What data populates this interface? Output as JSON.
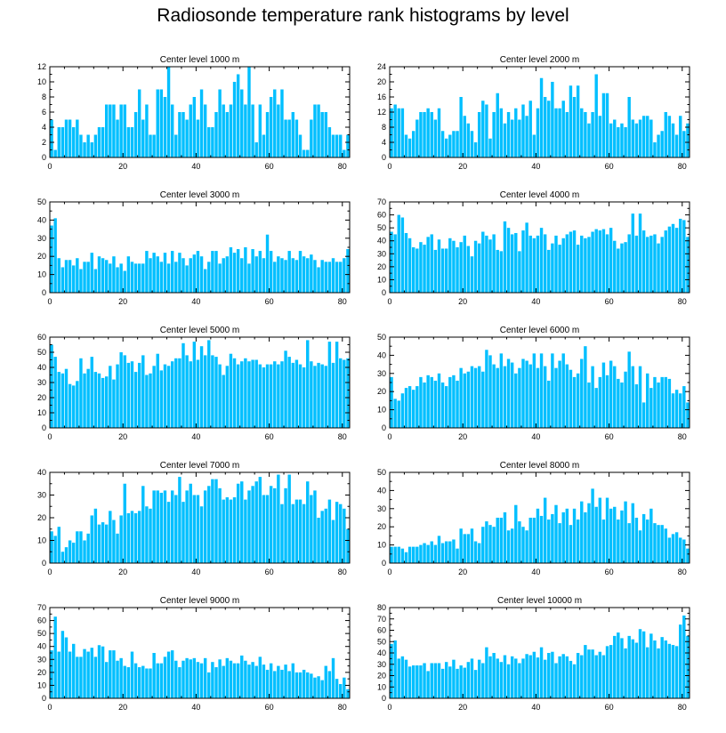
{
  "title": "Radiosonde temperature rank histograms by level",
  "bar_color": "#00bfff",
  "chart_data": [
    {
      "type": "bar",
      "title": "Center level 1000 m",
      "xlim": [
        0,
        82
      ],
      "ylim": [
        0,
        12
      ],
      "xticks": [
        0,
        20,
        40,
        60,
        80
      ],
      "yticks": [
        0,
        2,
        4,
        6,
        8,
        10,
        12
      ],
      "values": [
        5,
        1,
        4,
        4,
        5,
        5,
        4,
        5,
        3,
        2,
        3,
        2,
        3,
        4,
        4,
        7,
        7,
        7,
        5,
        7,
        7,
        4,
        4,
        6,
        9,
        5,
        7,
        3,
        3,
        9,
        9,
        8,
        12,
        7,
        3,
        6,
        6,
        5,
        7,
        8,
        5,
        9,
        7,
        4,
        4,
        6,
        9,
        7,
        6,
        7,
        10,
        11,
        9,
        7,
        12,
        7,
        2,
        7,
        3,
        6,
        8,
        9,
        7,
        9,
        5,
        5,
        6,
        5,
        3,
        1,
        1,
        5,
        7,
        7,
        6,
        6,
        4,
        3,
        3,
        3,
        1,
        3
      ]
    },
    {
      "type": "bar",
      "title": "Center level 2000 m",
      "xlim": [
        0,
        82
      ],
      "ylim": [
        0,
        24
      ],
      "xticks": [
        0,
        20,
        40,
        60,
        80
      ],
      "yticks": [
        0,
        4,
        8,
        12,
        16,
        20,
        24
      ],
      "values": [
        13,
        14,
        13,
        13,
        6,
        5,
        7,
        10,
        12,
        12,
        13,
        12,
        10,
        13,
        7,
        5,
        6,
        7,
        7,
        16,
        11,
        9,
        7,
        4,
        12,
        15,
        14,
        5,
        12,
        17,
        13,
        9,
        12,
        10,
        13,
        10,
        14,
        11,
        15,
        6,
        13,
        21,
        16,
        15,
        20,
        13,
        13,
        15,
        12,
        19,
        16,
        19,
        13,
        12,
        9,
        12,
        22,
        11,
        17,
        17,
        9,
        10,
        8,
        9,
        8,
        16,
        10,
        9,
        10,
        11,
        11,
        10,
        4,
        6,
        7,
        12,
        11,
        9,
        6,
        11,
        7,
        9
      ]
    },
    {
      "type": "bar",
      "title": "Center level 3000 m",
      "xlim": [
        0,
        82
      ],
      "ylim": [
        0,
        50
      ],
      "xticks": [
        0,
        20,
        40,
        60,
        80
      ],
      "yticks": [
        0,
        10,
        20,
        30,
        40,
        50
      ],
      "values": [
        37,
        41,
        19,
        14,
        18,
        18,
        15,
        19,
        13,
        17,
        17,
        22,
        13,
        20,
        19,
        18,
        16,
        20,
        14,
        16,
        12,
        20,
        17,
        16,
        16,
        16,
        23,
        19,
        22,
        20,
        17,
        22,
        16,
        23,
        17,
        22,
        19,
        15,
        19,
        21,
        23,
        20,
        13,
        17,
        23,
        23,
        16,
        19,
        20,
        25,
        22,
        24,
        19,
        25,
        16,
        24,
        20,
        23,
        19,
        32,
        23,
        17,
        20,
        19,
        18,
        23,
        19,
        18,
        23,
        20,
        19,
        21,
        18,
        14,
        18,
        17,
        17,
        19,
        17,
        17,
        19,
        24
      ]
    },
    {
      "type": "bar",
      "title": "Center level 4000 m",
      "xlim": [
        0,
        82
      ],
      "ylim": [
        0,
        70
      ],
      "xticks": [
        0,
        20,
        40,
        60,
        80
      ],
      "yticks": [
        0,
        10,
        20,
        30,
        40,
        50,
        60,
        70
      ],
      "values": [
        47,
        45,
        60,
        58,
        46,
        42,
        35,
        34,
        39,
        37,
        43,
        45,
        33,
        41,
        34,
        34,
        42,
        40,
        35,
        39,
        44,
        36,
        28,
        40,
        38,
        47,
        44,
        41,
        45,
        33,
        32,
        55,
        50,
        45,
        46,
        32,
        48,
        54,
        44,
        42,
        44,
        50,
        45,
        33,
        38,
        44,
        37,
        42,
        45,
        47,
        48,
        37,
        44,
        42,
        43,
        47,
        49,
        48,
        49,
        45,
        50,
        40,
        34,
        38,
        39,
        45,
        61,
        44,
        61,
        48,
        43,
        44,
        45,
        38,
        43,
        48,
        51,
        53,
        50,
        57,
        56,
        43
      ]
    },
    {
      "type": "bar",
      "title": "Center level 5000 m",
      "xlim": [
        0,
        82
      ],
      "ylim": [
        0,
        60
      ],
      "xticks": [
        0,
        20,
        40,
        60,
        80
      ],
      "yticks": [
        0,
        10,
        20,
        30,
        40,
        50,
        60
      ],
      "values": [
        55,
        47,
        37,
        36,
        39,
        29,
        28,
        31,
        46,
        36,
        39,
        47,
        37,
        36,
        33,
        34,
        41,
        32,
        42,
        50,
        48,
        43,
        44,
        37,
        43,
        48,
        35,
        36,
        41,
        49,
        38,
        42,
        41,
        44,
        46,
        46,
        56,
        48,
        44,
        57,
        45,
        54,
        48,
        58,
        48,
        47,
        42,
        35,
        41,
        49,
        46,
        42,
        44,
        46,
        44,
        45,
        45,
        42,
        40,
        42,
        42,
        44,
        42,
        44,
        51,
        47,
        43,
        45,
        42,
        40,
        58,
        44,
        41,
        43,
        42,
        41,
        57,
        43,
        57,
        46,
        45,
        46
      ]
    },
    {
      "type": "bar",
      "title": "Center level 6000 m",
      "xlim": [
        0,
        82
      ],
      "ylim": [
        0,
        50
      ],
      "xticks": [
        0,
        20,
        40,
        60,
        80
      ],
      "yticks": [
        0,
        10,
        20,
        30,
        40,
        50
      ],
      "values": [
        28,
        16,
        15,
        19,
        22,
        23,
        21,
        23,
        28,
        25,
        29,
        28,
        26,
        30,
        25,
        23,
        28,
        29,
        26,
        33,
        30,
        31,
        34,
        33,
        34,
        31,
        43,
        40,
        35,
        33,
        41,
        34,
        38,
        36,
        30,
        33,
        38,
        37,
        35,
        41,
        33,
        41,
        34,
        26,
        41,
        33,
        37,
        41,
        35,
        32,
        28,
        30,
        38,
        45,
        25,
        34,
        22,
        28,
        36,
        29,
        37,
        34,
        27,
        25,
        31,
        42,
        34,
        24,
        34,
        14,
        30,
        22,
        28,
        25,
        28,
        28,
        27,
        19,
        21,
        19,
        23,
        14
      ]
    },
    {
      "type": "bar",
      "title": "Center level 7000 m",
      "xlim": [
        0,
        82
      ],
      "ylim": [
        0,
        40
      ],
      "xticks": [
        0,
        20,
        40,
        60,
        80
      ],
      "yticks": [
        0,
        10,
        20,
        30,
        40
      ],
      "values": [
        14,
        12,
        16,
        5,
        7,
        10,
        9,
        14,
        14,
        10,
        13,
        21,
        24,
        17,
        18,
        17,
        23,
        19,
        13,
        21,
        35,
        22,
        23,
        22,
        23,
        34,
        25,
        24,
        32,
        32,
        31,
        32,
        27,
        32,
        30,
        38,
        27,
        32,
        35,
        30,
        30,
        25,
        32,
        34,
        37,
        37,
        33,
        28,
        29,
        28,
        29,
        35,
        36,
        28,
        32,
        34,
        36,
        38,
        30,
        30,
        34,
        33,
        39,
        26,
        33,
        39,
        26,
        28,
        28,
        26,
        36,
        30,
        32,
        20,
        23,
        24,
        28,
        19,
        27,
        26,
        24,
        15
      ]
    },
    {
      "type": "bar",
      "title": "Center level 8000 m",
      "xlim": [
        0,
        82
      ],
      "ylim": [
        0,
        50
      ],
      "xticks": [
        0,
        20,
        40,
        60,
        80
      ],
      "yticks": [
        0,
        10,
        20,
        30,
        40,
        50
      ],
      "values": [
        9,
        9,
        9,
        8,
        6,
        9,
        9,
        9,
        10,
        11,
        10,
        12,
        10,
        15,
        11,
        12,
        12,
        13,
        8,
        19,
        16,
        16,
        19,
        12,
        11,
        20,
        23,
        21,
        20,
        25,
        25,
        28,
        18,
        19,
        32,
        23,
        20,
        18,
        25,
        25,
        30,
        26,
        36,
        24,
        27,
        32,
        22,
        28,
        30,
        21,
        30,
        24,
        34,
        28,
        33,
        41,
        31,
        36,
        24,
        36,
        30,
        31,
        24,
        29,
        34,
        22,
        33,
        25,
        18,
        27,
        24,
        30,
        22,
        21,
        21,
        19,
        14,
        16,
        17,
        14,
        13,
        8
      ]
    },
    {
      "type": "bar",
      "title": "Center level 9000 m",
      "xlim": [
        0,
        82
      ],
      "ylim": [
        0,
        70
      ],
      "xticks": [
        0,
        20,
        40,
        60,
        80
      ],
      "yticks": [
        0,
        10,
        20,
        30,
        40,
        50,
        60,
        70
      ],
      "values": [
        37,
        63,
        36,
        52,
        47,
        36,
        42,
        32,
        32,
        38,
        36,
        39,
        32,
        41,
        40,
        28,
        37,
        37,
        29,
        31,
        25,
        24,
        36,
        27,
        24,
        25,
        23,
        23,
        35,
        27,
        27,
        32,
        36,
        37,
        29,
        24,
        29,
        31,
        30,
        31,
        28,
        27,
        31,
        20,
        28,
        24,
        30,
        25,
        31,
        29,
        27,
        27,
        33,
        29,
        26,
        28,
        25,
        32,
        26,
        22,
        27,
        21,
        25,
        22,
        26,
        21,
        27,
        20,
        20,
        22,
        20,
        19,
        16,
        17,
        14,
        25,
        21,
        31,
        15,
        11,
        16,
        7
      ]
    },
    {
      "type": "bar",
      "title": "Center level 10000 m",
      "xlim": [
        0,
        82
      ],
      "ylim": [
        0,
        80
      ],
      "xticks": [
        0,
        20,
        40,
        60,
        80
      ],
      "yticks": [
        0,
        10,
        20,
        30,
        40,
        50,
        60,
        70,
        80
      ],
      "values": [
        48,
        51,
        35,
        37,
        34,
        28,
        29,
        29,
        29,
        31,
        24,
        31,
        31,
        31,
        26,
        32,
        28,
        34,
        26,
        29,
        27,
        32,
        35,
        25,
        34,
        31,
        45,
        37,
        40,
        35,
        32,
        38,
        30,
        37,
        35,
        31,
        35,
        39,
        38,
        41,
        36,
        45,
        34,
        40,
        41,
        31,
        37,
        39,
        37,
        33,
        30,
        40,
        38,
        47,
        43,
        43,
        38,
        41,
        38,
        46,
        47,
        55,
        58,
        53,
        44,
        55,
        52,
        49,
        61,
        59,
        45,
        57,
        51,
        44,
        54,
        51,
        48,
        47,
        46,
        65,
        73,
        55
      ]
    }
  ]
}
